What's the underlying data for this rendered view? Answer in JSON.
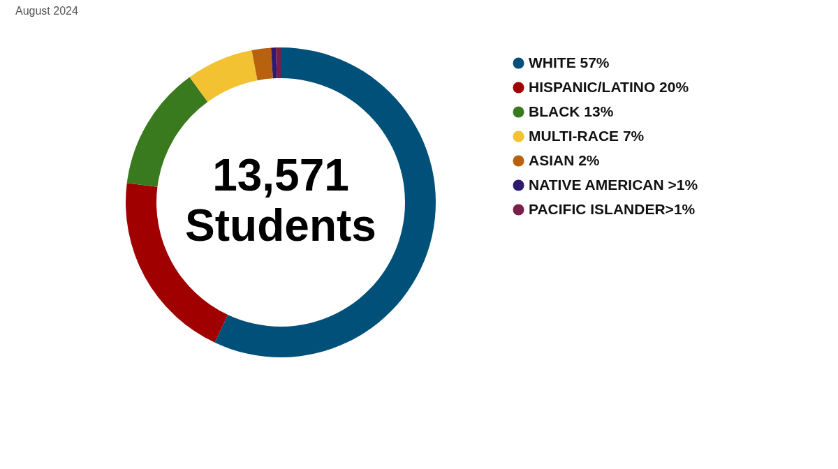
{
  "chart_data": {
    "type": "donut",
    "title": "August 2024",
    "categories": [
      "WHITE 57%",
      "HISPANIC/LATINO 20%",
      "BLACK 13%",
      "MULTI-RACE 7%",
      "ASIAN 2%",
      "NATIVE AMERICAN >1%",
      "PACIFIC ISLANDER>1%"
    ],
    "values": [
      57,
      20,
      13,
      7,
      2,
      0.5,
      0.5
    ],
    "colors": [
      "#00507a",
      "#a00000",
      "#3a7a1e",
      "#f2c232",
      "#b8610e",
      "#2e1a6e",
      "#7a1e4a"
    ],
    "legend": "right",
    "annotations": [
      "13,571",
      "Students"
    ]
  }
}
